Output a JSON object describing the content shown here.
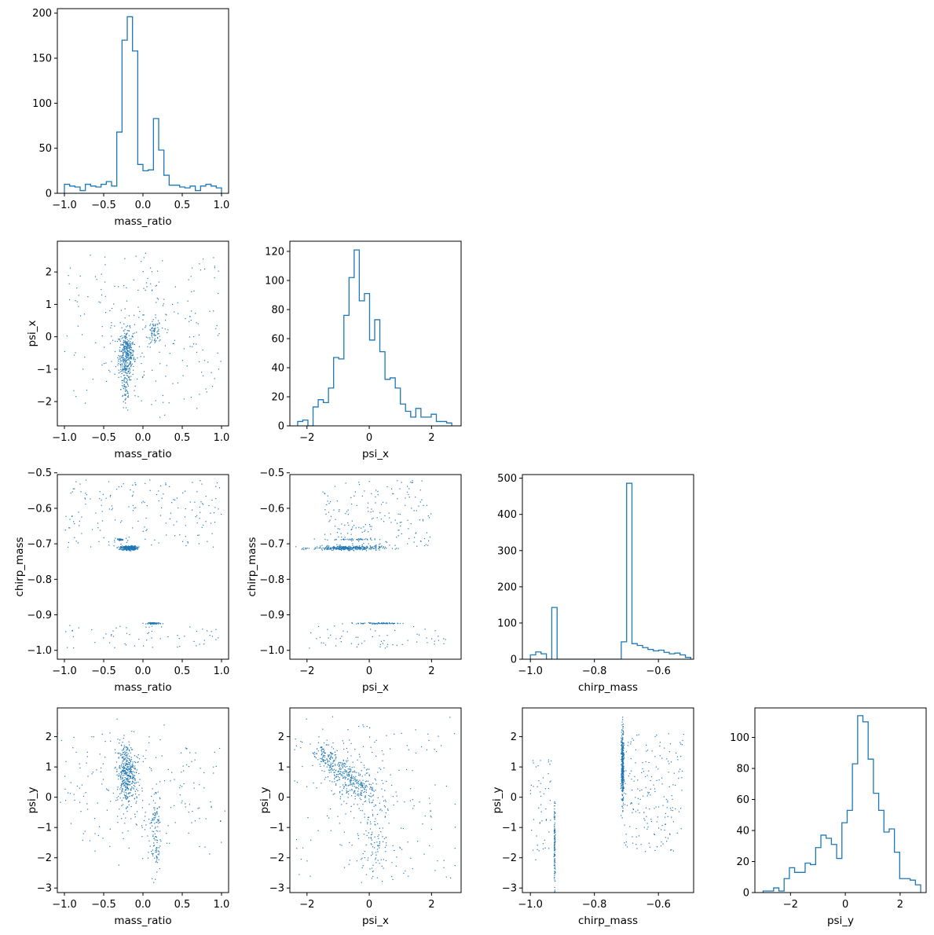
{
  "figure": {
    "accent_color": "#1f77b4"
  },
  "chart_data": [
    {
      "type": "histogram",
      "row": 0,
      "col": 0,
      "xlabel": "mass_ratio",
      "xlim": [
        -1.09,
        1.09
      ],
      "ylim": [
        0,
        205
      ],
      "xticks": [
        -1.0,
        -0.5,
        0.0,
        0.5,
        1.0
      ],
      "yticks": [
        0,
        50,
        100,
        150,
        200
      ],
      "bins": {
        "start": -1.0,
        "width": 0.06667,
        "counts": [
          10,
          8,
          7,
          3,
          10,
          8,
          7,
          10,
          13,
          8,
          68,
          170,
          196,
          158,
          32,
          25,
          26,
          83,
          48,
          20,
          9,
          9,
          7,
          6,
          8,
          3,
          8,
          10,
          8,
          6
        ]
      }
    },
    {
      "type": "scatter",
      "row": 1,
      "col": 0,
      "xlabel": "mass_ratio",
      "ylabel": "psi_x",
      "xlim": [
        -1.09,
        1.09
      ],
      "ylim": [
        -2.75,
        2.95
      ],
      "xticks": [
        -1.0,
        -0.5,
        0.0,
        0.5,
        1.0
      ],
      "yticks": [
        -2,
        -1,
        0,
        1,
        2
      ],
      "clusters": [
        {
          "cx": -0.21,
          "cy": -0.55,
          "sx": 0.05,
          "sy": 0.38,
          "n": 350
        },
        {
          "cx": -0.22,
          "cy": -1.6,
          "sx": 0.03,
          "sy": 0.4,
          "n": 60
        },
        {
          "cx": 0.15,
          "cy": 0.15,
          "sx": 0.04,
          "sy": 0.18,
          "n": 70
        },
        {
          "cx": -0.05,
          "cy": 0.2,
          "sx": 0.5,
          "sy": 0.9,
          "n": 110
        },
        {
          "x_range": [
            -1.0,
            1.0
          ],
          "y_range": [
            -2.5,
            2.6
          ],
          "n": 140
        }
      ]
    },
    {
      "type": "histogram",
      "row": 1,
      "col": 1,
      "xlabel": "psi_x",
      "xlim": [
        -2.55,
        2.95
      ],
      "ylim": [
        0,
        127
      ],
      "xticks": [
        -2,
        0,
        2
      ],
      "yticks": [
        0,
        20,
        40,
        60,
        80,
        100,
        120
      ],
      "bins": {
        "start": -2.3,
        "width": 0.165,
        "counts": [
          3,
          4,
          0,
          13,
          18,
          16,
          26,
          47,
          46,
          76,
          102,
          121,
          86,
          91,
          59,
          73,
          51,
          32,
          33,
          26,
          15,
          10,
          6,
          12,
          6,
          6,
          8,
          3,
          3,
          2
        ]
      }
    },
    {
      "type": "scatter",
      "row": 2,
      "col": 0,
      "xlabel": "mass_ratio",
      "ylabel": "chirp_mass",
      "xlim": [
        -1.09,
        1.09
      ],
      "ylim": [
        -1.025,
        -0.505
      ],
      "xticks": [
        -1.0,
        -0.5,
        0.0,
        0.5,
        1.0
      ],
      "yticks": [
        -1.0,
        -0.9,
        -0.8,
        -0.7,
        -0.6,
        -0.5
      ],
      "clusters": [
        {
          "cx": -0.18,
          "cy": -0.712,
          "sx": 0.05,
          "sy": 0.003,
          "n": 330
        },
        {
          "cx": -0.29,
          "cy": -0.688,
          "sx": 0.02,
          "sy": 0.001,
          "n": 40
        },
        {
          "cx": 0.15,
          "cy": -0.924,
          "sx": 0.04,
          "sy": 0.001,
          "n": 80
        },
        {
          "x_range": [
            -1.0,
            1.0
          ],
          "y_range": [
            -0.71,
            -0.52
          ],
          "n": 180
        },
        {
          "x_range": [
            -1.0,
            1.0
          ],
          "y_range": [
            -0.995,
            -0.93
          ],
          "n": 60
        }
      ]
    },
    {
      "type": "scatter",
      "row": 2,
      "col": 1,
      "xlabel": "psi_x",
      "ylabel": "chirp_mass",
      "xlim": [
        -2.55,
        2.95
      ],
      "ylim": [
        -1.025,
        -0.505
      ],
      "xticks": [
        -2,
        0,
        2
      ],
      "yticks": [
        -1.0,
        -0.9,
        -0.8,
        -0.7,
        -0.6,
        -0.5
      ],
      "clusters": [
        {
          "cx": -0.7,
          "cy": -0.712,
          "sx": 0.55,
          "sy": 0.003,
          "n": 330
        },
        {
          "cx": -0.6,
          "cy": -0.688,
          "sx": 0.45,
          "sy": 0.001,
          "n": 40
        },
        {
          "cx": 0.3,
          "cy": -0.924,
          "sx": 0.35,
          "sy": 0.001,
          "n": 80
        },
        {
          "x_range": [
            -1.5,
            2.0
          ],
          "y_range": [
            -0.71,
            -0.52
          ],
          "n": 180
        },
        {
          "x_range": [
            -2.0,
            2.5
          ],
          "y_range": [
            -0.995,
            -0.93
          ],
          "n": 60
        }
      ]
    },
    {
      "type": "histogram",
      "row": 2,
      "col": 2,
      "xlabel": "chirp_mass",
      "xlim": [
        -1.025,
        -0.49
      ],
      "ylim": [
        0,
        510
      ],
      "xticks": [
        -1.0,
        -0.8,
        -0.6
      ],
      "yticks": [
        0,
        100,
        200,
        300,
        400,
        500
      ],
      "bins": {
        "start": -1.0,
        "width": 0.0167,
        "counts": [
          12,
          20,
          15,
          0,
          143,
          0,
          0,
          0,
          0,
          0,
          0,
          0,
          0,
          0,
          0,
          0,
          0,
          48,
          486,
          43,
          38,
          32,
          27,
          23,
          25,
          19,
          15,
          17,
          12,
          5
        ]
      }
    },
    {
      "type": "scatter",
      "row": 3,
      "col": 0,
      "xlabel": "mass_ratio",
      "ylabel": "psi_y",
      "xlim": [
        -1.09,
        1.09
      ],
      "ylim": [
        -3.15,
        2.95
      ],
      "xticks": [
        -1.0,
        -0.5,
        0.0,
        0.5,
        1.0
      ],
      "yticks": [
        -3,
        -2,
        -1,
        0,
        1,
        2
      ],
      "clusters": [
        {
          "cx": -0.21,
          "cy": 0.8,
          "sx": 0.06,
          "sy": 0.5,
          "n": 400
        },
        {
          "cx": 0.15,
          "cy": -1.2,
          "sx": 0.04,
          "sy": 0.7,
          "n": 110
        },
        {
          "cx": -0.05,
          "cy": 0.0,
          "sx": 0.5,
          "sy": 1.0,
          "n": 100
        },
        {
          "x_range": [
            -1.0,
            1.0
          ],
          "y_range": [
            -2.2,
            2.2
          ],
          "n": 120
        }
      ]
    },
    {
      "type": "scatter",
      "row": 3,
      "col": 1,
      "xlabel": "psi_x",
      "ylabel": "psi_y",
      "xlim": [
        -2.55,
        2.95
      ],
      "ylim": [
        -3.15,
        2.95
      ],
      "xticks": [
        -2,
        0,
        2
      ],
      "yticks": [
        -3,
        -2,
        -1,
        0,
        1,
        2
      ],
      "clusters": [
        {
          "line": [
            [
              -1.6,
              1.5
            ],
            [
              0.0,
              0.1
            ]
          ],
          "spread": 0.25,
          "n": 400
        },
        {
          "cx": 0.2,
          "cy": -1.4,
          "sx": 0.3,
          "sy": 0.6,
          "n": 110
        },
        {
          "cx": -0.2,
          "cy": 0.3,
          "sx": 0.8,
          "sy": 1.0,
          "n": 120
        },
        {
          "x_range": [
            -2.4,
            2.8
          ],
          "y_range": [
            -2.8,
            2.7
          ],
          "n": 110
        }
      ]
    },
    {
      "type": "scatter",
      "row": 3,
      "col": 2,
      "xlabel": "chirp_mass",
      "ylabel": "psi_y",
      "xlim": [
        -1.025,
        -0.49
      ],
      "ylim": [
        -3.15,
        2.95
      ],
      "xticks": [
        -1.0,
        -0.8,
        -0.6
      ],
      "yticks": [
        -3,
        -2,
        -1,
        0,
        1,
        2
      ],
      "clusters": [
        {
          "cx": -0.712,
          "cy": 1.0,
          "sx": 0.002,
          "sy": 0.6,
          "n": 380
        },
        {
          "cx": -0.924,
          "cy": -1.5,
          "sx": 0.001,
          "sy": 0.7,
          "n": 120
        },
        {
          "x_range": [
            -0.71,
            -0.52
          ],
          "y_range": [
            -1.8,
            2.1
          ],
          "n": 190
        },
        {
          "x_range": [
            -1.0,
            -0.935
          ],
          "y_range": [
            -2.2,
            1.3
          ],
          "n": 50
        }
      ]
    },
    {
      "type": "histogram",
      "row": 3,
      "col": 3,
      "xlabel": "psi_y",
      "xlim": [
        -3.3,
        2.95
      ],
      "ylim": [
        0,
        119
      ],
      "xticks": [
        -2,
        0,
        2
      ],
      "yticks": [
        0,
        20,
        40,
        60,
        80,
        100
      ],
      "bins": {
        "start": -3.0,
        "width": 0.1917,
        "counts": [
          1,
          1,
          3,
          1,
          9,
          16,
          13,
          13,
          19,
          18,
          29,
          37,
          35,
          31,
          22,
          45,
          53,
          83,
          114,
          110,
          86,
          64,
          53,
          39,
          41,
          26,
          9,
          9,
          8,
          5
        ]
      }
    }
  ]
}
